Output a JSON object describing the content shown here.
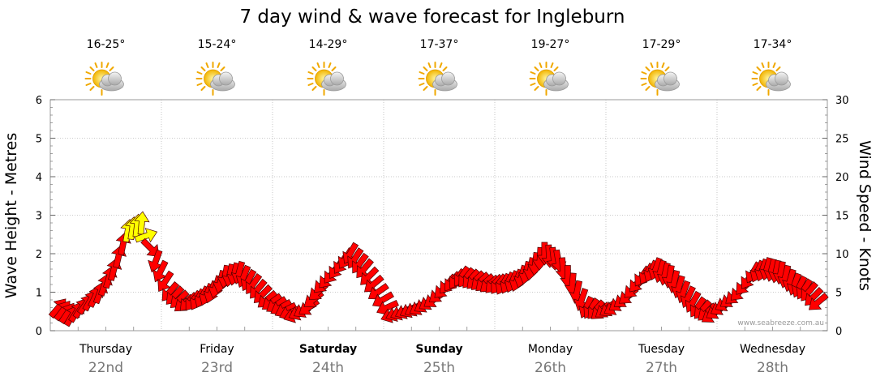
{
  "chart_data": {
    "type": "line",
    "title": "7 day wind & wave forecast for Ingleburn",
    "ylabel_left": "Wave Height - Metres",
    "ylabel_right": "Wind Speed - Knots",
    "ylim_left": [
      0,
      6
    ],
    "ylim_right": [
      0,
      30
    ],
    "yticks_left": [
      "0",
      "1",
      "2",
      "3",
      "4",
      "5",
      "6"
    ],
    "yticks_right": [
      "0",
      "5",
      "10",
      "15",
      "20",
      "25",
      "30"
    ],
    "grid": true,
    "credit": "www.seabreeze.com.au",
    "days": [
      {
        "day": "Thursday",
        "date": "22nd",
        "temp": "16-25°",
        "bold": false
      },
      {
        "day": "Friday",
        "date": "23rd",
        "temp": "15-24°",
        "bold": false
      },
      {
        "day": "Saturday",
        "date": "24th",
        "temp": "14-29°",
        "bold": true
      },
      {
        "day": "Sunday",
        "date": "25th",
        "temp": "17-37°",
        "bold": true
      },
      {
        "day": "Monday",
        "date": "26th",
        "temp": "19-27°",
        "bold": false
      },
      {
        "day": "Tuesday",
        "date": "27th",
        "temp": "17-29°",
        "bold": false
      },
      {
        "day": "Wednesday",
        "date": "28th",
        "temp": "17-34°",
        "bold": false
      }
    ],
    "weather_icon": "partly-cloudy-icon",
    "series": [
      {
        "values_note": "wind speed in knots at 3-hourly steps; direction arrows",
        "x": [
          0,
          0.125,
          0.25,
          0.375,
          0.5,
          0.625,
          0.75,
          0.875,
          1,
          1.125,
          1.25,
          1.375,
          1.5,
          1.625,
          1.75,
          1.875,
          2,
          2.125,
          2.25,
          2.375,
          2.5,
          2.625,
          2.75,
          2.875,
          3,
          3.125,
          3.25,
          3.375,
          3.5,
          3.625,
          3.75,
          3.875,
          4,
          4.125,
          4.25,
          4.375,
          4.5,
          4.625,
          4.75,
          4.875,
          5,
          5.125,
          5.25,
          5.375,
          5.5,
          5.625,
          5.75,
          5.875,
          6,
          6.125,
          6.25,
          6.375,
          6.5,
          6.625,
          6.75,
          6.875
        ],
        "values": [
          3,
          2,
          3.5,
          5,
          8,
          13,
          14,
          9,
          5,
          3.5,
          4,
          5,
          7,
          7.5,
          6,
          4,
          3,
          2,
          3,
          6,
          8,
          10,
          8,
          5,
          2,
          2.5,
          3,
          4,
          6,
          7,
          6.5,
          6,
          6,
          6.5,
          8,
          10,
          9,
          6,
          3,
          2.5,
          3,
          4.5,
          7,
          8,
          7,
          5,
          3,
          2,
          3.5,
          5,
          7.5,
          8,
          7.5,
          6,
          5,
          3
        ]
      }
    ]
  }
}
